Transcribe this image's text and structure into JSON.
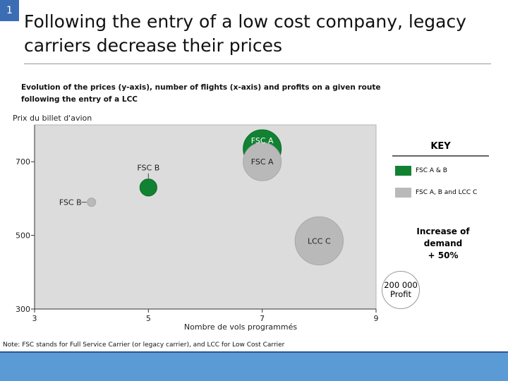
{
  "slide": {
    "number": "1"
  },
  "title": "Following the entry of a low cost company, legacy carriers decrease their prices",
  "chart_data": {
    "type": "scatter",
    "subtitle": "Evolution of the prices (y-axis), number of flights (x-axis) and profits on a given route following the entry of a LCC",
    "ylabel": "Prix du billet d'avion",
    "xlabel": "Nombre de vols programmés",
    "xlim": [
      3,
      9
    ],
    "ylim": [
      300,
      800
    ],
    "xticks": [
      3,
      5,
      7,
      9
    ],
    "yticks": [
      300,
      500,
      700
    ],
    "grid": false,
    "series": [
      {
        "name": "FSC A & B",
        "color": "#118232",
        "points": [
          {
            "label": "FSC A",
            "x": 7,
            "y": 735,
            "profit": 200000
          },
          {
            "label": "FSC B",
            "x": 5,
            "y": 630,
            "profit": 40000
          }
        ]
      },
      {
        "name": "FSC A, B and LCC C",
        "color": "#b9b9b9",
        "points": [
          {
            "label": "FSC A",
            "x": 7,
            "y": 700,
            "profit": 200000
          },
          {
            "label": "FSC B",
            "x": 4,
            "y": 590,
            "profit": 10000
          },
          {
            "label": "LCC C",
            "x": 8,
            "y": 485,
            "profit": 320000
          }
        ]
      }
    ]
  },
  "key": {
    "title": "KEY",
    "items": [
      {
        "label": "FSC A & B",
        "color": "#118232"
      },
      {
        "label": "FSC A, B and LCC C",
        "color": "#b9b9b9"
      }
    ]
  },
  "demand": {
    "line1": "Increase of",
    "line2": "demand",
    "line3": "+ 50%"
  },
  "profit_ref": {
    "value": "200 000",
    "label": "Profit"
  },
  "note": "Note: FSC stands for Full Service Carrier (or legacy carrier), and LCC for Low Cost Carrier"
}
